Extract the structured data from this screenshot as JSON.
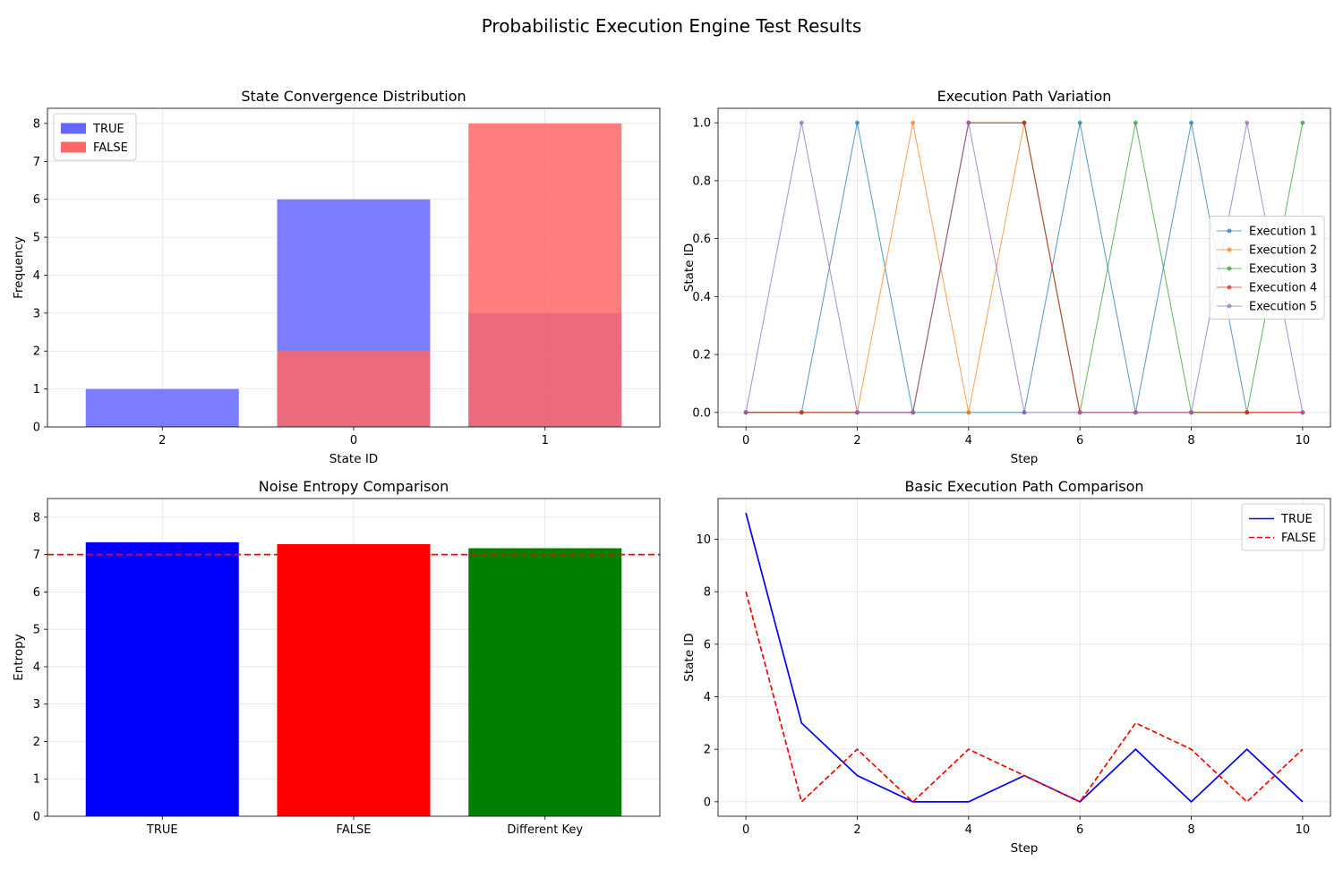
{
  "figure": {
    "title": "Probabilistic Execution Engine Test Results"
  },
  "chart_data": [
    {
      "type": "bar",
      "title": "State Convergence Distribution",
      "xlabel": "State ID",
      "ylabel": "Frequency",
      "categories": [
        "2",
        "0",
        "1"
      ],
      "series": [
        {
          "name": "TRUE",
          "values": [
            1,
            6,
            3
          ],
          "color": "#6666ff"
        },
        {
          "name": "FALSE",
          "values": [
            0,
            2,
            8
          ],
          "color": "#ff6666"
        }
      ],
      "overlap": true,
      "ylim": [
        0,
        8.4
      ],
      "yticks": [
        0,
        1,
        2,
        3,
        4,
        5,
        6,
        7,
        8
      ],
      "grid": true,
      "legend": "upper-left"
    },
    {
      "type": "line",
      "title": "Execution Path Variation",
      "xlabel": "Step",
      "ylabel": "State ID",
      "x": [
        0,
        1,
        2,
        3,
        4,
        5,
        6,
        7,
        8,
        9,
        10
      ],
      "series": [
        {
          "name": "Execution 1",
          "color": "#1f77b4",
          "values": [
            0,
            0,
            1,
            0,
            0,
            0,
            1,
            0,
            1,
            0,
            0
          ]
        },
        {
          "name": "Execution 2",
          "color": "#ff7f0e",
          "values": [
            0,
            0,
            0,
            1,
            0,
            1,
            0,
            0,
            0,
            0,
            0
          ]
        },
        {
          "name": "Execution 3",
          "color": "#2ca02c",
          "values": [
            0,
            0,
            0,
            0,
            1,
            1,
            0,
            1,
            0,
            0,
            1
          ]
        },
        {
          "name": "Execution 4",
          "color": "#d62728",
          "values": [
            0,
            0,
            0,
            0,
            1,
            1,
            0,
            0,
            0,
            0,
            0
          ]
        },
        {
          "name": "Execution 5",
          "color": "#9467bd",
          "values": [
            0,
            1,
            0,
            0,
            1,
            0,
            0,
            0,
            0,
            1,
            0
          ]
        }
      ],
      "xlim": [
        -0.5,
        10.5
      ],
      "ylim": [
        -0.05,
        1.05
      ],
      "xticks": [
        0,
        2,
        4,
        6,
        8,
        10
      ],
      "yticks": [
        "0.0",
        "0.2",
        "0.4",
        "0.6",
        "0.8",
        "1.0"
      ],
      "grid": true,
      "legend": "center-right"
    },
    {
      "type": "bar",
      "title": "Noise Entropy Comparison",
      "xlabel": "",
      "ylabel": "Entropy",
      "categories": [
        "TRUE",
        "FALSE",
        "Different Key"
      ],
      "values": [
        7.33,
        7.28,
        7.17
      ],
      "colors": [
        "#0000ff",
        "#ff0000",
        "#008000"
      ],
      "reference_line": 7,
      "reference_color": "#ff0000",
      "ylim": [
        0,
        8.5
      ],
      "yticks": [
        0,
        1,
        2,
        3,
        4,
        5,
        6,
        7,
        8
      ],
      "grid": true
    },
    {
      "type": "line",
      "title": "Basic Execution Path Comparison",
      "xlabel": "Step",
      "ylabel": "State ID",
      "x": [
        0,
        1,
        2,
        3,
        4,
        5,
        6,
        7,
        8,
        9,
        10
      ],
      "series": [
        {
          "name": "TRUE",
          "color": "#0000ff",
          "dash": false,
          "values": [
            11,
            3,
            1,
            0,
            0,
            1,
            0,
            2,
            0,
            2,
            0
          ]
        },
        {
          "name": "FALSE",
          "color": "#ff0000",
          "dash": true,
          "values": [
            8,
            0,
            2,
            0,
            2,
            1,
            0,
            3,
            2,
            0,
            2
          ]
        }
      ],
      "xlim": [
        -0.5,
        10.5
      ],
      "ylim": [
        -0.55,
        11.55
      ],
      "xticks": [
        0,
        2,
        4,
        6,
        8,
        10
      ],
      "yticks": [
        0,
        2,
        4,
        6,
        8,
        10
      ],
      "grid": true,
      "legend": "upper-right"
    }
  ]
}
